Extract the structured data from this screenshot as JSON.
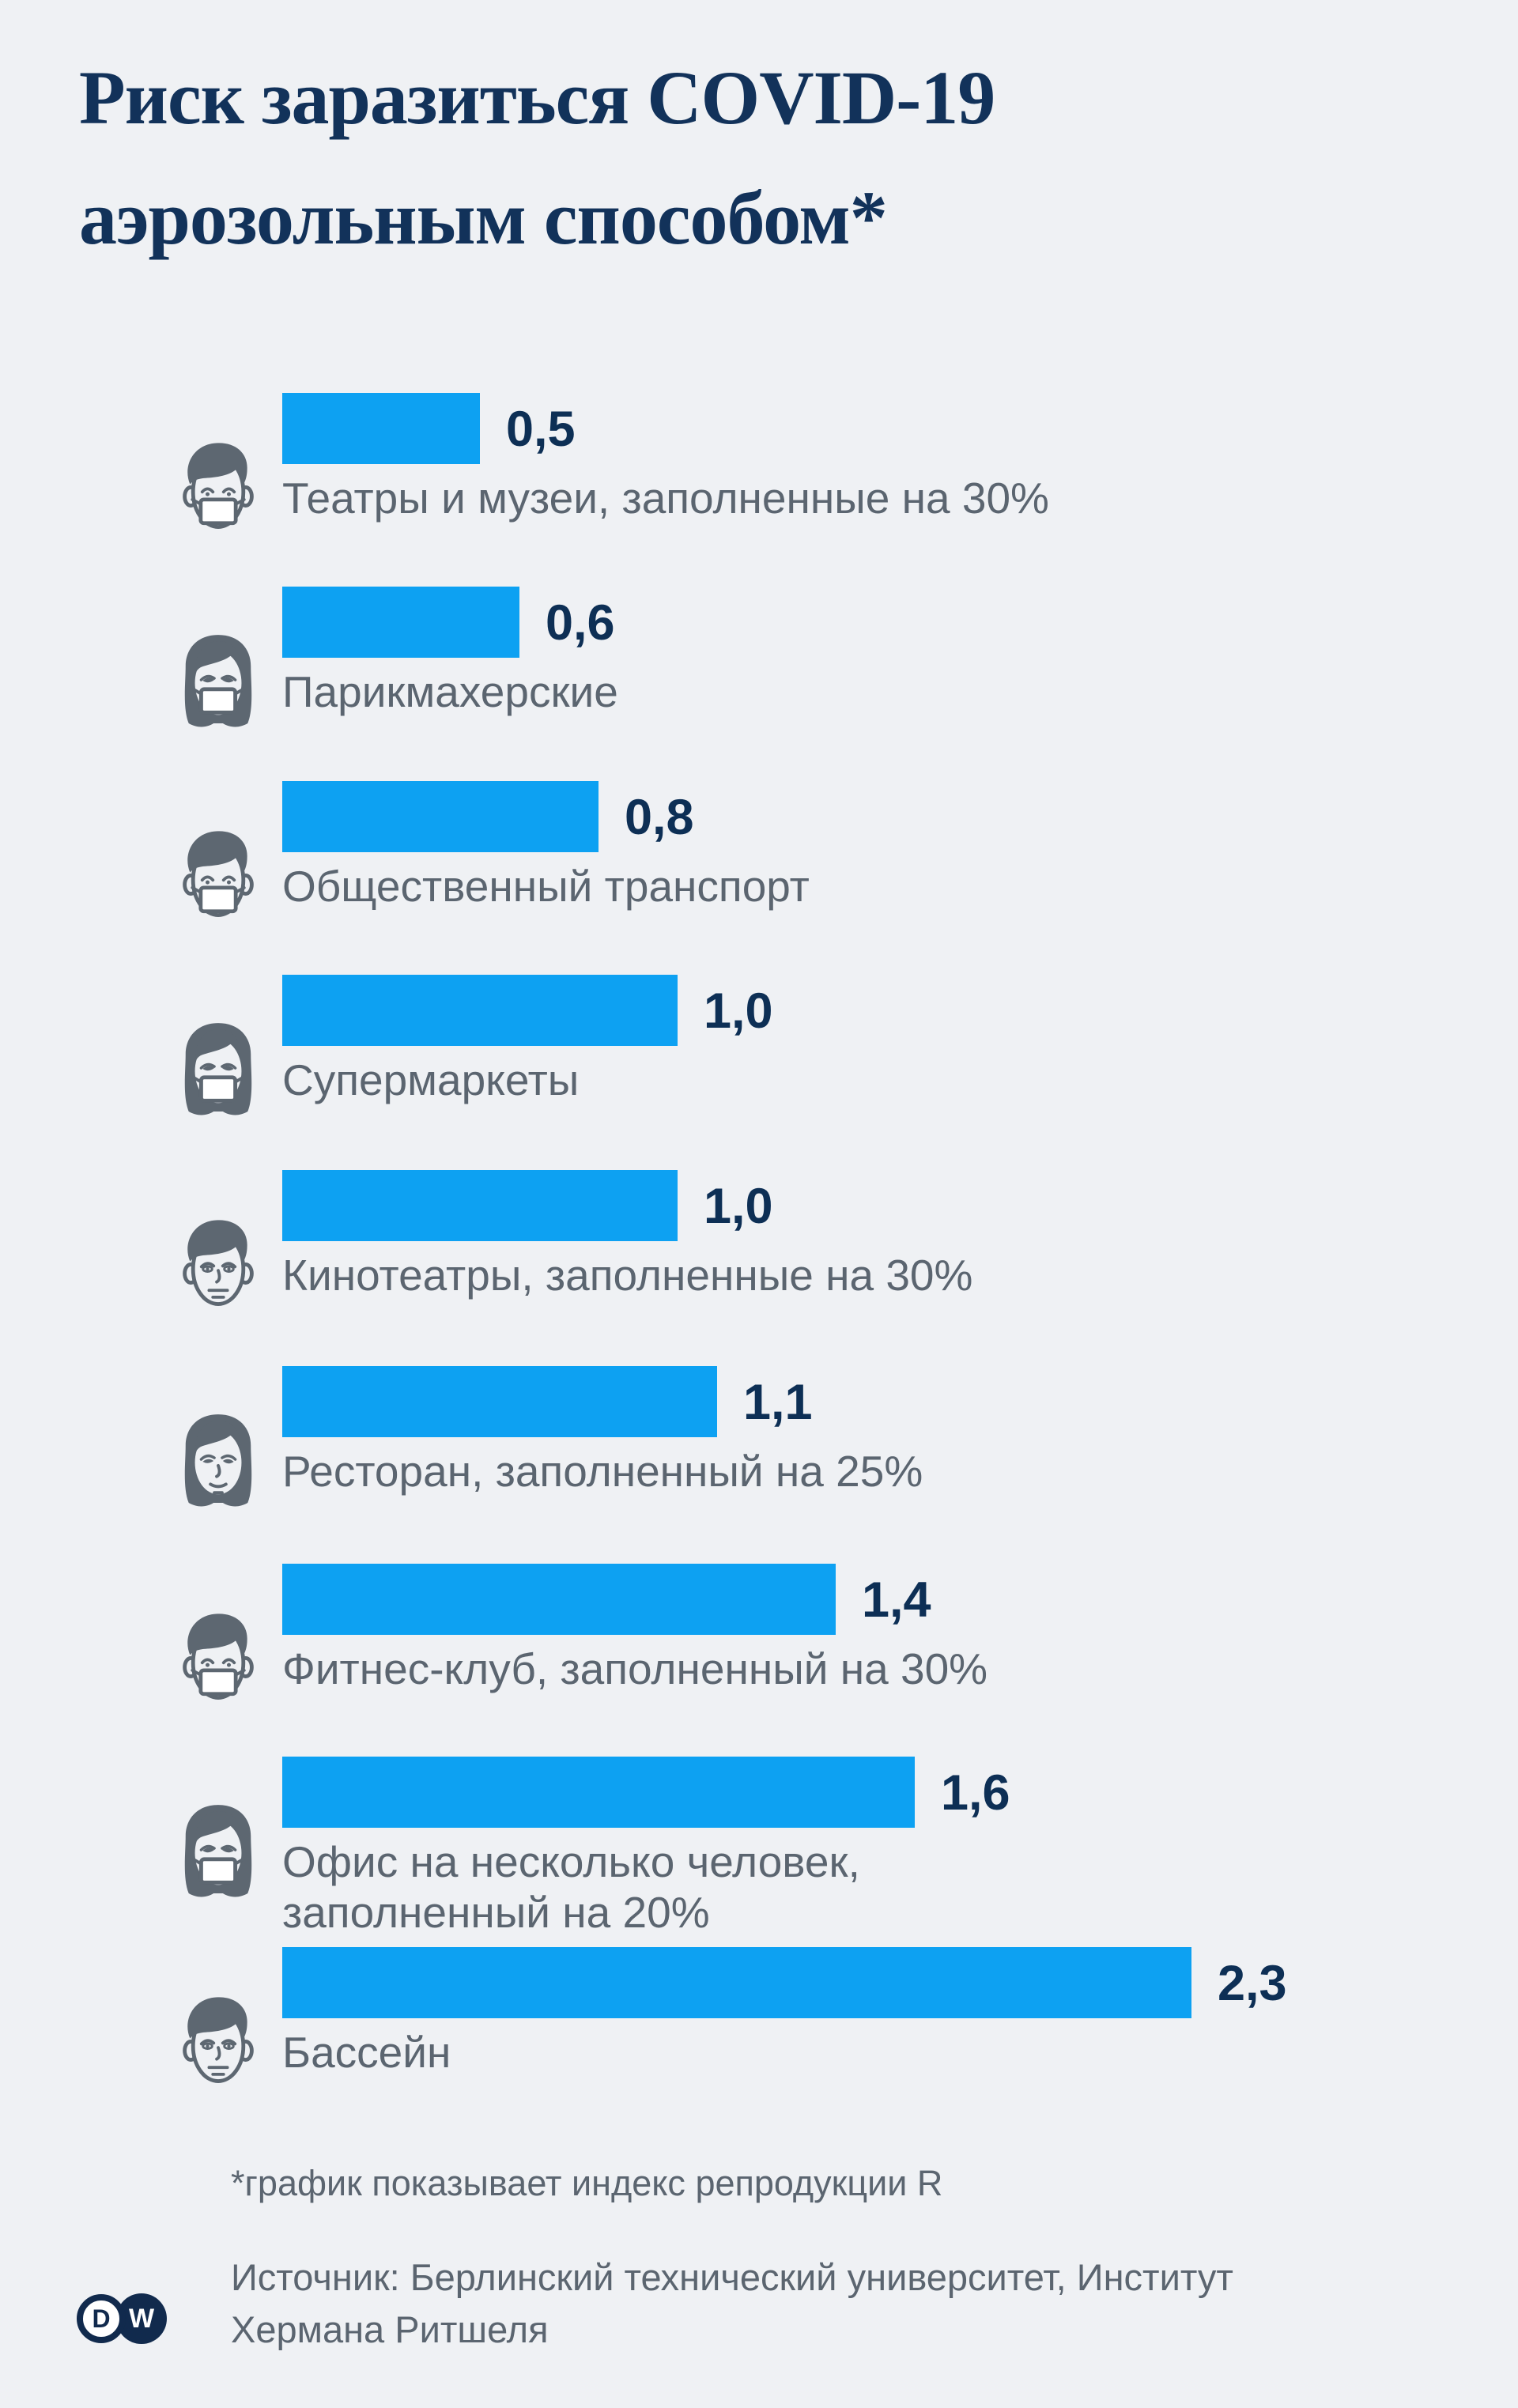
{
  "title": {
    "line1": "Риск заразиться COVID-19",
    "line2": "аэрозольным способом*"
  },
  "chart_data": {
    "type": "bar",
    "orientation": "horizontal",
    "title": "Риск заразиться COVID-19 аэрозольным способом*",
    "value_meaning": "индекс репродукции R",
    "categories": [
      "Театры и музеи, заполненные на 30%",
      "Парикмахерские",
      "Общественный транспорт",
      "Супермаркеты",
      "Кинотеатры, заполненные на 30%",
      "Ресторан, заполненный на 25%",
      "Фитнес-клуб, заполненный на 30%",
      "Офис на несколько человек, заполненный на 20%",
      "Бассейн"
    ],
    "values": [
      0.5,
      0.6,
      0.8,
      1.0,
      1.0,
      1.1,
      1.4,
      1.6,
      2.3
    ],
    "value_labels": [
      "0,5",
      "0,6",
      "0,8",
      "1,0",
      "1,0",
      "1,1",
      "1,4",
      "1,6",
      "2,3"
    ],
    "xlim": [
      0,
      2.3
    ],
    "grid": false,
    "legend": false,
    "bar_color": "#0da1f2"
  },
  "rows": [
    {
      "icon": "man-masked",
      "label_lines": [
        "Театры и музеи, заполненные на 30%"
      ],
      "value_label": "0,5"
    },
    {
      "icon": "woman-masked",
      "label_lines": [
        "Парикмахерские"
      ],
      "value_label": "0,6"
    },
    {
      "icon": "man-masked",
      "label_lines": [
        "Общественный транспорт"
      ],
      "value_label": "0,8"
    },
    {
      "icon": "woman-masked",
      "label_lines": [
        "Супермаркеты"
      ],
      "value_label": "1,0"
    },
    {
      "icon": "man-unmasked",
      "label_lines": [
        "Кинотеатры, заполненные на 30%"
      ],
      "value_label": "1,0"
    },
    {
      "icon": "woman-unmasked",
      "label_lines": [
        "Ресторан, заполненный на 25%"
      ],
      "value_label": "1,1"
    },
    {
      "icon": "man-masked",
      "label_lines": [
        "Фитнес-клуб, заполненный на 30%"
      ],
      "value_label": "1,4"
    },
    {
      "icon": "woman-masked",
      "label_lines": [
        "Офис на несколько человек,",
        "заполненный на 20%"
      ],
      "value_label": "1,6"
    },
    {
      "icon": "man-unmasked",
      "label_lines": [
        "Бассейн"
      ],
      "value_label": "2,3"
    }
  ],
  "footnote": "*график показывает индекс репродукции R",
  "source": {
    "line1": "Источник: Берлинский технический университет, Институт",
    "line2": "Хермана Ритшеля"
  },
  "logo": {
    "letter_d": "D",
    "letter_w": "W"
  },
  "colors": {
    "background": "#eff1f4",
    "bar": "#0da1f2",
    "title": "#12325a",
    "value": "#0d2f55",
    "text": "#5b6570",
    "icon": "#5d6771",
    "logo": "#112a4d"
  }
}
